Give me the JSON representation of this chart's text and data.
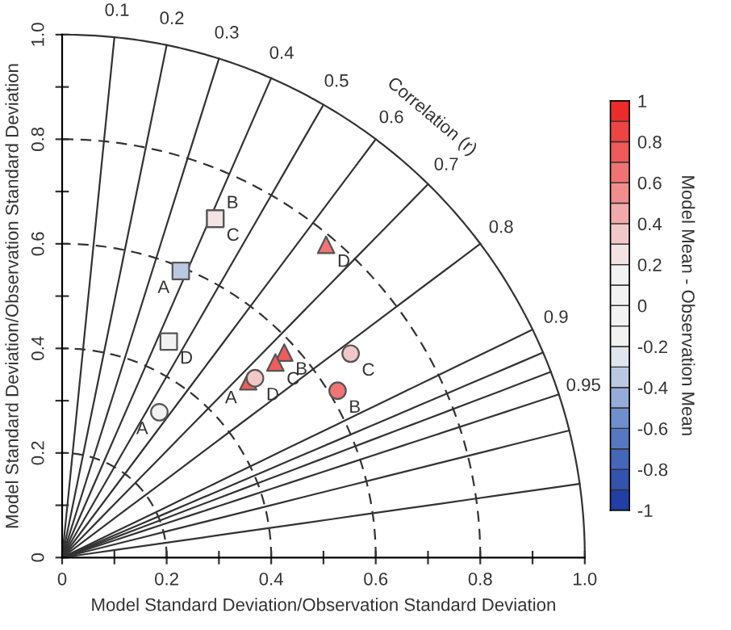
{
  "chart_data": {
    "type": "scatter",
    "xlabel": "Model Standard Deviation/Observation Standard Deviation",
    "ylabel": "Model Standard Deviation/Observation Standard Deviation",
    "clabel": "Model Mean - Observation Mean",
    "xlim": [
      0,
      1.0
    ],
    "ylim": [
      0,
      1.0
    ],
    "xticks": [
      0,
      {
        "value": 0.1,
        "label": null
      },
      0.2,
      {
        "value": 0.3,
        "label": null
      },
      0.4,
      {
        "value": 0.5,
        "label": null
      },
      0.6,
      {
        "value": 0.7,
        "label": null
      },
      0.8,
      {
        "value": 0.9,
        "label": null
      },
      {
        "value": 1.0,
        "label": "1.0"
      }
    ],
    "yticks": [
      0,
      {
        "value": 0.1,
        "label": null
      },
      0.2,
      {
        "value": 0.3,
        "label": null
      },
      0.4,
      {
        "value": 0.5,
        "label": null
      },
      0.6,
      {
        "value": 0.7,
        "label": null
      },
      0.8,
      {
        "value": 0.9,
        "label": null
      },
      {
        "value": 1.0,
        "label": "1.0"
      }
    ],
    "clim": [
      -1,
      1
    ],
    "cticks": [
      -1,
      -0.8,
      -0.6,
      -0.4,
      -0.2,
      0,
      0.2,
      0.4,
      0.6,
      0.8,
      1
    ],
    "annotations": [
      {
        "text": "0.1",
        "x": 0.1,
        "y": 0.995
      },
      {
        "text": "0.2",
        "x": 0.2,
        "y": 0.98
      },
      {
        "text": "0.3",
        "x": 0.3,
        "y": 0.954
      },
      {
        "text": "0.4",
        "x": 0.4,
        "y": 0.917
      },
      {
        "text": "0.5",
        "x": 0.5,
        "y": 0.866
      },
      {
        "text": "0.6",
        "x": 0.6,
        "y": 0.8
      },
      {
        "text": "0.7",
        "x": 0.7,
        "y": 0.714
      },
      {
        "text": "0.8",
        "x": 0.8,
        "y": 0.6
      },
      {
        "text": "0.9",
        "x": 0.9,
        "y": 0.436
      },
      {
        "text": "0.95",
        "x": 0.95,
        "y": 0.312
      },
      "Correlation (r)"
    ],
    "series": [
      {
        "type": "line",
        "color": "#333333",
        "x": [
          0,
          0.1
        ],
        "values": [
          0,
          0.995
        ]
      },
      {
        "type": "line",
        "color": "#333333",
        "x": [
          0,
          0.2
        ],
        "values": [
          0,
          0.98
        ]
      },
      {
        "type": "line",
        "color": "#333333",
        "x": [
          0,
          0.3
        ],
        "values": [
          0,
          0.954
        ]
      },
      {
        "type": "line",
        "color": "#333333",
        "x": [
          0,
          0.4
        ],
        "values": [
          0,
          0.917
        ]
      },
      {
        "type": "line",
        "color": "#333333",
        "x": [
          0,
          0.5
        ],
        "values": [
          0,
          0.866
        ]
      },
      {
        "type": "line",
        "color": "#333333",
        "x": [
          0,
          0.6
        ],
        "values": [
          0,
          0.8
        ]
      },
      {
        "type": "line",
        "color": "#333333",
        "x": [
          0,
          0.7
        ],
        "values": [
          0,
          0.714
        ]
      },
      {
        "type": "line",
        "color": "#333333",
        "x": [
          0,
          0.8
        ],
        "values": [
          0,
          0.6
        ]
      },
      {
        "type": "line",
        "color": "#333333",
        "x": [
          0,
          0.9
        ],
        "values": [
          0,
          0.436
        ]
      },
      {
        "type": "line",
        "color": "#333333",
        "x": [
          0,
          0.92
        ],
        "values": [
          0,
          0.392
        ]
      },
      {
        "type": "line",
        "color": "#333333",
        "x": [
          0,
          0.935
        ],
        "values": [
          0,
          0.355
        ]
      },
      {
        "type": "line",
        "color": "#333333",
        "x": [
          0,
          0.95
        ],
        "values": [
          0,
          0.312
        ]
      },
      {
        "type": "line",
        "color": "#333333",
        "x": [
          0,
          0.97
        ],
        "values": [
          0,
          0.243
        ]
      },
      {
        "type": "line",
        "color": "#333333",
        "x": [
          0,
          0.99
        ],
        "values": [
          0,
          0.141
        ]
      },
      {
        "type": "line",
        "color": "#333333",
        "line_style": "dashed",
        "x": [
          0.2,
          0.197,
          0.188,
          0.173,
          0.153,
          0.129,
          0.1,
          0.068,
          0.035,
          0
        ],
        "values": [
          0,
          0.035,
          0.068,
          0.1,
          0.129,
          0.153,
          0.173,
          0.188,
          0.197,
          0.2
        ]
      },
      {
        "type": "line",
        "color": "#333333",
        "line_style": "dashed",
        "x": [
          0.4,
          0.394,
          0.376,
          0.346,
          0.306,
          0.257,
          0.2,
          0.137,
          0.069,
          0
        ],
        "values": [
          0,
          0.069,
          0.137,
          0.2,
          0.257,
          0.306,
          0.346,
          0.376,
          0.394,
          0.4
        ]
      },
      {
        "type": "line",
        "color": "#333333",
        "line_style": "dashed",
        "x": [
          0.6,
          0.591,
          0.564,
          0.52,
          0.46,
          0.386,
          0.3,
          0.205,
          0.104,
          0
        ],
        "values": [
          0,
          0.104,
          0.205,
          0.3,
          0.386,
          0.46,
          0.52,
          0.564,
          0.591,
          0.6
        ]
      },
      {
        "type": "line",
        "color": "#333333",
        "line_style": "dashed",
        "x": [
          0.8,
          0.788,
          0.752,
          0.693,
          0.613,
          0.514,
          0.4,
          0.274,
          0.139,
          0
        ],
        "values": [
          0,
          0.139,
          0.274,
          0.4,
          0.514,
          0.613,
          0.693,
          0.752,
          0.788,
          0.8
        ]
      },
      {
        "type": "line",
        "color": "#333333",
        "x": [
          1.0,
          0.985,
          0.94,
          0.866,
          0.766,
          0.643,
          0.5,
          0.342,
          0.174,
          0
        ],
        "values": [
          0,
          0.174,
          0.342,
          0.5,
          0.643,
          0.766,
          0.866,
          0.94,
          0.985,
          1.0
        ]
      },
      {
        "marker": "square",
        "x": [
          0.227,
          0.293,
          0.293,
          0.204
        ],
        "values": [
          0.548,
          0.648,
          0.648,
          0.413
        ],
        "colors": [
          "#bbc8e2",
          "#f2e4e4",
          "#f2e4e4",
          "#f2f2f2"
        ],
        "value_labels": [
          "A",
          "B",
          "C",
          "D"
        ]
      },
      {
        "marker": "triangle",
        "x": [
          0.356,
          0.425,
          0.408,
          0.505
        ],
        "values": [
          0.337,
          0.392,
          0.373,
          0.598
        ],
        "colors": [
          "#ef5c5c",
          "#ef5c5c",
          "#ef5c5c",
          "#f07474"
        ],
        "value_labels": [
          "A",
          "B",
          "C",
          "D"
        ]
      },
      {
        "marker": "circle",
        "x": [
          0.186,
          0.527,
          0.552,
          0.369
        ],
        "values": [
          0.278,
          0.319,
          0.39,
          0.343
        ],
        "colors": [
          "#f2f2f2",
          "#f07474",
          "#f1c7c7",
          "#f1c7c7"
        ],
        "value_labels": [
          "A",
          "B",
          "C",
          "D"
        ]
      }
    ]
  }
}
